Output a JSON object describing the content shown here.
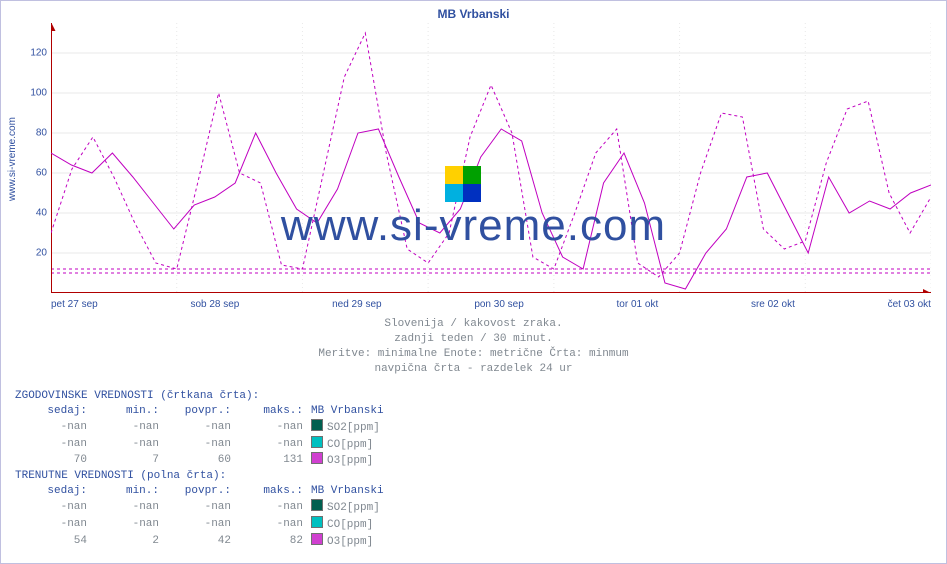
{
  "source_label": "www.si-vreme.com",
  "watermark_text": "www.si-vreme.com",
  "chart": {
    "title": "MB Vrbanski",
    "type": "line",
    "xlim": [
      0,
      7
    ],
    "ylim": [
      0,
      135
    ],
    "yticks": [
      20,
      40,
      60,
      80,
      100,
      120
    ],
    "xticks": [
      "pet 27 sep",
      "sob 28 sep",
      "ned 29 sep",
      "pon 30 sep",
      "tor 01 okt",
      "sre 02 okt",
      "čet 03 okt"
    ],
    "axis_color": "#b00000",
    "grid_color": "#e8e8e8",
    "background_color": "#ffffff",
    "axis_fontsize": 10,
    "title_fontsize": 12,
    "title_color": "#3050a0",
    "major_tick_color": "#b00000",
    "reference_lines": {
      "y": [
        10,
        12
      ],
      "color": "#c000c0",
      "dash": "3,3"
    },
    "series": [
      {
        "name": "O3 historical (dashed)",
        "color": "#c000c0",
        "style": "dashed",
        "width": 1,
        "values": [
          30,
          62,
          78,
          58,
          35,
          15,
          12,
          55,
          100,
          60,
          55,
          14,
          12,
          60,
          108,
          130,
          70,
          22,
          15,
          30,
          78,
          104,
          80,
          18,
          12,
          40,
          70,
          82,
          15,
          8,
          20,
          60,
          90,
          88,
          32,
          22,
          26,
          65,
          92,
          96,
          50,
          30,
          48
        ]
      },
      {
        "name": "O3 current (solid)",
        "color": "#c000c0",
        "style": "solid",
        "width": 1,
        "values": [
          70,
          64,
          60,
          70,
          58,
          45,
          32,
          44,
          48,
          55,
          80,
          60,
          42,
          35,
          52,
          80,
          82,
          58,
          35,
          30,
          42,
          68,
          82,
          76,
          40,
          18,
          12,
          55,
          70,
          45,
          5,
          2,
          20,
          32,
          58,
          60,
          40,
          20,
          58,
          40,
          46,
          42,
          50,
          54
        ]
      }
    ]
  },
  "caption": {
    "line1": "Slovenija / kakovost zraka.",
    "line2": "zadnji teden / 30 minut.",
    "line3": "Meritve: minimalne  Enote: metrične  Črta: minmum",
    "line4": "navpična črta - razdelek 24 ur"
  },
  "tables": {
    "historical": {
      "title": "ZGODOVINSKE VREDNOSTI (črtkana črta):",
      "columns": [
        "sedaj:",
        "min.:",
        "povpr.:",
        "maks.:",
        "MB Vrbanski"
      ],
      "rows": [
        {
          "cells": [
            "-nan",
            "-nan",
            "-nan",
            "-nan"
          ],
          "swatch": "#006050",
          "label": "SO2[ppm]"
        },
        {
          "cells": [
            "-nan",
            "-nan",
            "-nan",
            "-nan"
          ],
          "swatch": "#00c0c0",
          "label": "CO[ppm]"
        },
        {
          "cells": [
            "70",
            "7",
            "60",
            "131"
          ],
          "swatch": "#d040d0",
          "label": "O3[ppm]"
        }
      ]
    },
    "current": {
      "title": "TRENUTNE VREDNOSTI (polna črta):",
      "columns": [
        "sedaj:",
        "min.:",
        "povpr.:",
        "maks.:",
        "MB Vrbanski"
      ],
      "rows": [
        {
          "cells": [
            "-nan",
            "-nan",
            "-nan",
            "-nan"
          ],
          "swatch": "#006050",
          "label": "SO2[ppm]"
        },
        {
          "cells": [
            "-nan",
            "-nan",
            "-nan",
            "-nan"
          ],
          "swatch": "#00c0c0",
          "label": "CO[ppm]"
        },
        {
          "cells": [
            "54",
            "2",
            "42",
            "82"
          ],
          "swatch": "#d040d0",
          "label": "O3[ppm]"
        }
      ]
    }
  },
  "logo": {
    "colors": [
      "#ffd000",
      "#00a000",
      "#00b0e0",
      "#0030c0"
    ]
  }
}
